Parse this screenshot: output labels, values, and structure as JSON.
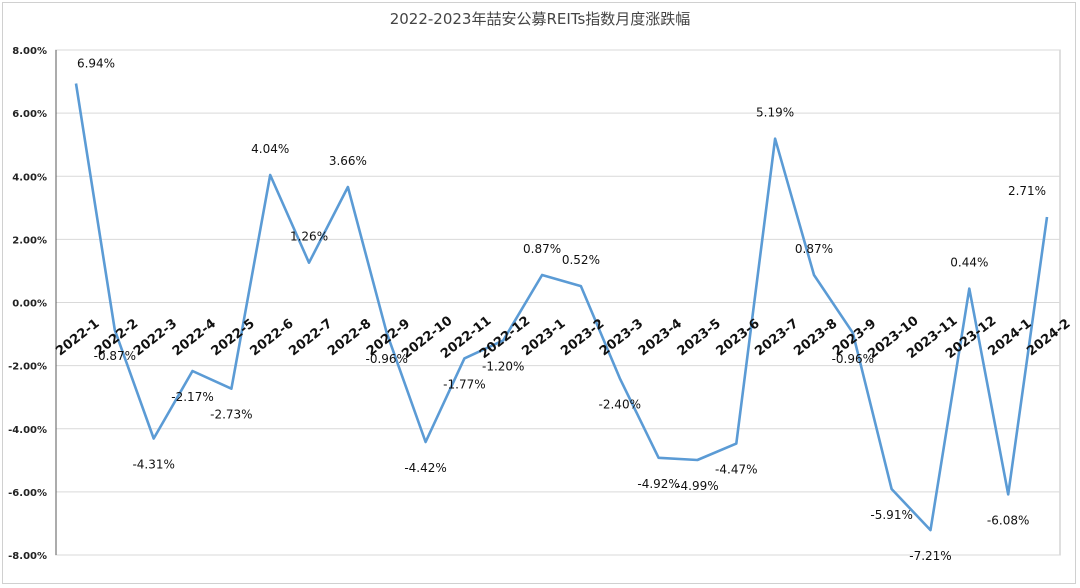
{
  "chart_data": {
    "type": "line",
    "title": "2022-2023年喆安公募REITs指数月度涨跌幅",
    "categories": [
      "2022-1",
      "2022-2",
      "2022-3",
      "2022-4",
      "2022-5",
      "2022-6",
      "2022-7",
      "2022-8",
      "2022-9",
      "2022-10",
      "2022-11",
      "2022-12",
      "2023-1",
      "2023-2",
      "2023-3",
      "2023-4",
      "2023-5",
      "2023-6",
      "2023-7",
      "2023-8",
      "2023-9",
      "2023-10",
      "2023-11",
      "2023-12",
      "2024-1",
      "2024-2"
    ],
    "values": [
      6.94,
      -0.87,
      -4.31,
      -2.17,
      -2.73,
      4.04,
      1.26,
      3.66,
      -0.96,
      -4.42,
      -1.77,
      -1.2,
      0.87,
      0.52,
      -2.4,
      -4.92,
      -4.99,
      -4.47,
      5.19,
      0.87,
      -0.96,
      -5.91,
      -7.21,
      0.44,
      -6.08,
      2.71
    ],
    "labels": [
      "6.94%",
      "-0.87%",
      "-4.31%",
      "-2.17%",
      "-2.73%",
      "4.04%",
      "1.26%",
      "3.66%",
      "-0.96%",
      "-4.42%",
      "-1.77%",
      "-1.20%",
      "0.87%",
      "0.52%",
      "-2.40%",
      "-4.92%",
      "-4.99%",
      "-4.47%",
      "5.19%",
      "0.87%",
      "-0.96%",
      "-5.91%",
      "-7.21%",
      "0.44%",
      "-6.08%",
      "2.71%"
    ],
    "y_ticks": [
      "8.00%",
      "6.00%",
      "4.00%",
      "2.00%",
      "0.00%",
      "-2.00%",
      "-4.00%",
      "-6.00%",
      "-8.00%"
    ],
    "ylim": [
      -8,
      8
    ],
    "grid": true,
    "line_color": "#5b9bd5"
  }
}
